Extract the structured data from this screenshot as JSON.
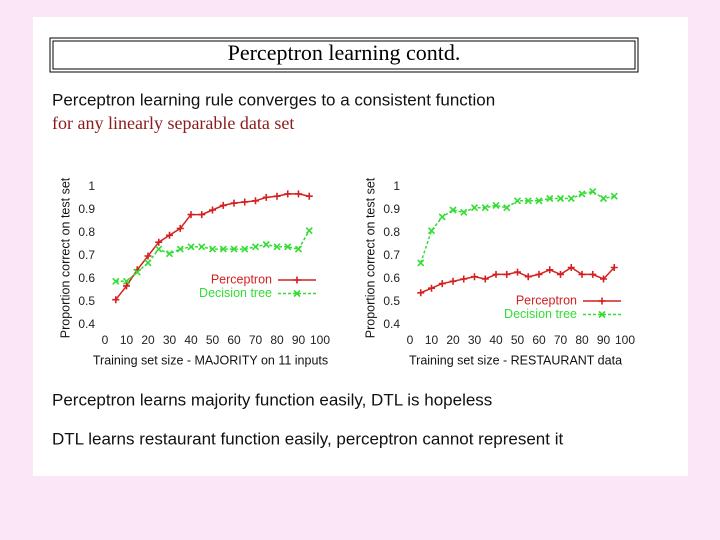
{
  "header": {
    "title": "Perceptron learning contd."
  },
  "intro": [
    "Perceptron learning rule converges to a consistent function",
    "for any linearly separable data set"
  ],
  "chart_data": [
    {
      "type": "line",
      "xlabel": "Training set size - MAJORITY on 11 inputs",
      "ylabel": "Proportion correct on test set",
      "x": [
        5,
        10,
        15,
        20,
        25,
        30,
        35,
        40,
        45,
        50,
        55,
        60,
        65,
        70,
        75,
        80,
        85,
        90,
        95
      ],
      "series": [
        {
          "name": "Perceptron",
          "color": "#d42020",
          "marker": "plus",
          "values": [
            0.51,
            0.57,
            0.64,
            0.7,
            0.76,
            0.79,
            0.82,
            0.88,
            0.88,
            0.9,
            0.92,
            0.93,
            0.935,
            0.94,
            0.955,
            0.96,
            0.97,
            0.97,
            0.96
          ]
        },
        {
          "name": "Decision tree",
          "color": "#33dd33",
          "marker": "cross",
          "dashed": true,
          "values": [
            0.59,
            0.59,
            0.63,
            0.67,
            0.73,
            0.71,
            0.73,
            0.74,
            0.74,
            0.73,
            0.73,
            0.73,
            0.73,
            0.74,
            0.75,
            0.74,
            0.74,
            0.73,
            0.81
          ]
        }
      ],
      "xlim": [
        0,
        100
      ],
      "xticks": [
        0,
        10,
        20,
        30,
        40,
        50,
        60,
        70,
        80,
        90,
        100
      ],
      "ylim": [
        0.4,
        1
      ],
      "yticks": [
        0.4,
        0.5,
        0.6,
        0.7,
        0.8,
        0.9,
        1
      ],
      "legend": "middle right"
    },
    {
      "type": "line",
      "xlabel": "Training set size - RESTAURANT data",
      "ylabel": "Proportion correct on test set",
      "x": [
        5,
        10,
        15,
        20,
        25,
        30,
        35,
        40,
        45,
        50,
        55,
        60,
        65,
        70,
        75,
        80,
        85,
        90,
        95
      ],
      "series": [
        {
          "name": "Perceptron",
          "color": "#d42020",
          "marker": "plus",
          "values": [
            0.54,
            0.56,
            0.58,
            0.59,
            0.6,
            0.61,
            0.6,
            0.62,
            0.62,
            0.63,
            0.61,
            0.62,
            0.64,
            0.62,
            0.65,
            0.62,
            0.62,
            0.6,
            0.65
          ]
        },
        {
          "name": "Decision tree",
          "color": "#33dd33",
          "marker": "cross",
          "dashed": true,
          "values": [
            0.67,
            0.81,
            0.87,
            0.9,
            0.89,
            0.91,
            0.91,
            0.92,
            0.91,
            0.94,
            0.94,
            0.94,
            0.95,
            0.95,
            0.95,
            0.97,
            0.98,
            0.95,
            0.96
          ]
        }
      ],
      "xlim": [
        0,
        100
      ],
      "xticks": [
        0,
        10,
        20,
        30,
        40,
        50,
        60,
        70,
        80,
        90,
        100
      ],
      "ylim": [
        0.4,
        1
      ],
      "yticks": [
        0.4,
        0.5,
        0.6,
        0.7,
        0.8,
        0.9,
        1
      ],
      "legend": "lower right"
    }
  ],
  "conclusions": [
    "Perceptron learns majority function easily, DTL is hopeless",
    "DTL learns restaurant function easily, perceptron cannot represent it"
  ]
}
